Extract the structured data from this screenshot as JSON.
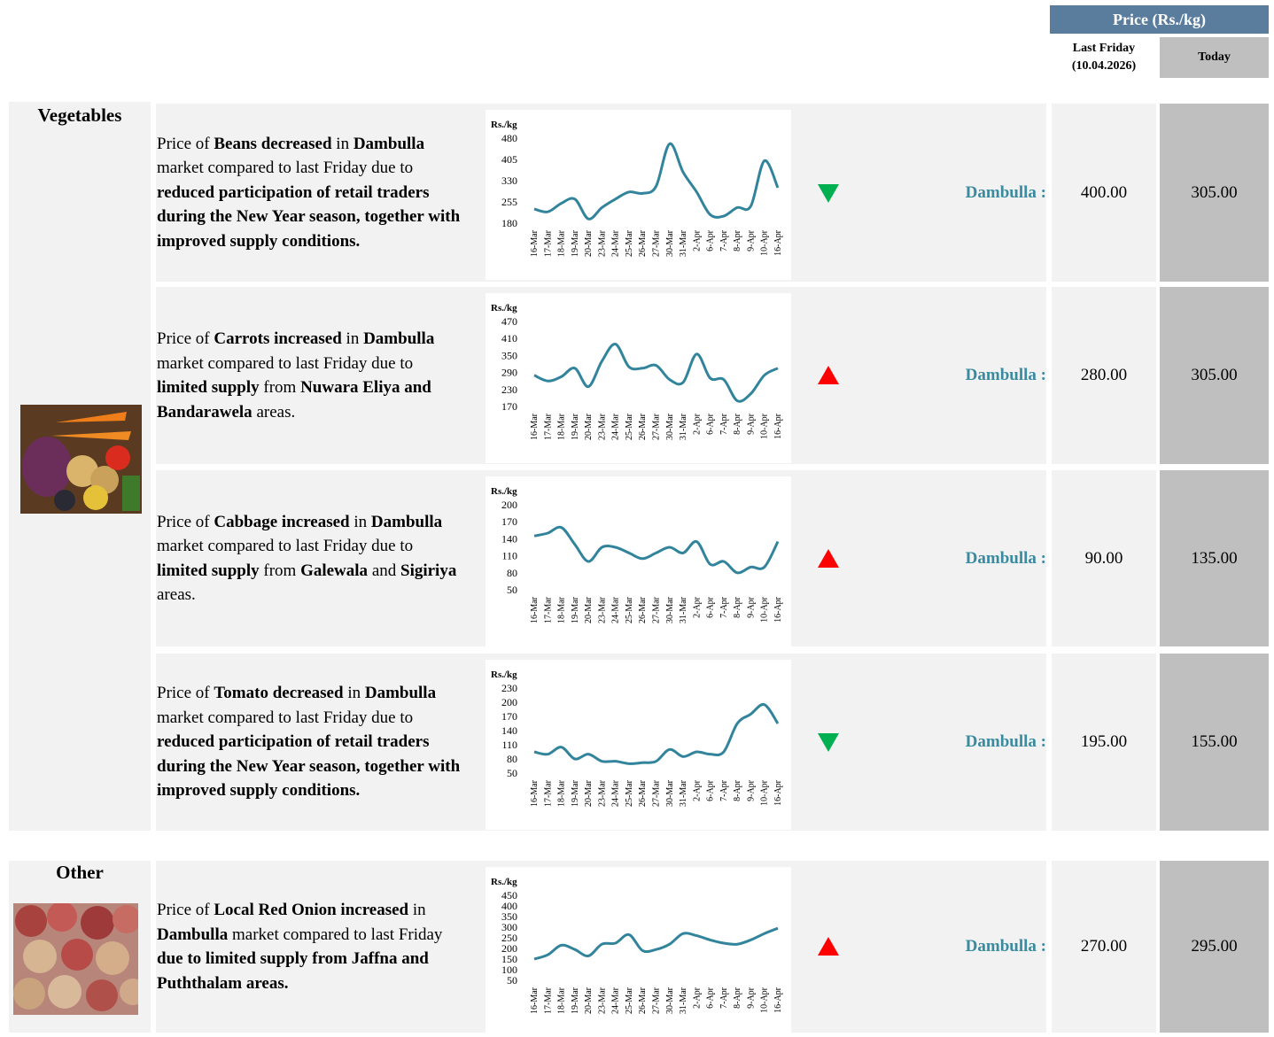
{
  "header": {
    "price_title": "Price (Rs./kg)",
    "last_friday": [
      "Last Friday",
      "(10.04.2026)"
    ],
    "today": "Today"
  },
  "sections": [
    {
      "title": "Vegetables",
      "rows": [
        {
          "description": [
            {
              "text": "Price of ",
              "bold": false
            },
            {
              "text": "Beans decreased",
              "bold": true
            },
            {
              "text": " in ",
              "bold": false
            },
            {
              "text": "Dambulla",
              "bold": true
            },
            {
              "text": " market compared to last Friday due to ",
              "bold": false
            },
            {
              "text": "reduced participation of retail traders during the New Year season, together with improved supply conditions.",
              "bold": true
            }
          ],
          "direction": "down",
          "arrow_color": "#00b050",
          "market": "Dambulla :",
          "last_friday": "400.00",
          "today": "305.00",
          "chart_data": {
            "type": "line",
            "ylabel": "Rs./kg",
            "color": "#31849b",
            "categories": [
              "16-Mar",
              "17-Mar",
              "18-Mar",
              "19-Mar",
              "20-Mar",
              "23-Mar",
              "24-Mar",
              "25-Mar",
              "26-Mar",
              "27-Mar",
              "30-Mar",
              "31-Mar",
              "2-Apr",
              "6-Apr",
              "7-Apr",
              "8-Apr",
              "9-Apr",
              "10-Apr",
              "16-Apr"
            ],
            "values": [
              230,
              220,
              250,
              265,
              195,
              235,
              265,
              290,
              285,
              310,
              460,
              360,
              290,
              210,
              205,
              235,
              240,
              400,
              305
            ],
            "ylim": [
              180,
              480
            ],
            "yticks": [
              180,
              255,
              330,
              405,
              480
            ]
          }
        },
        {
          "description": [
            {
              "text": "Price of ",
              "bold": false
            },
            {
              "text": "Carrots increased",
              "bold": true
            },
            {
              "text": " in ",
              "bold": false
            },
            {
              "text": "Dambulla",
              "bold": true
            },
            {
              "text": " market compared to last Friday due to ",
              "bold": false
            },
            {
              "text": "limited supply",
              "bold": true
            },
            {
              "text": " from ",
              "bold": false
            },
            {
              "text": "Nuwara Eliya and Bandarawela",
              "bold": true
            },
            {
              "text": " areas.",
              "bold": false
            }
          ],
          "direction": "up",
          "arrow_color": "#ff0000",
          "market": "Dambulla :",
          "last_friday": "280.00",
          "today": "305.00",
          "chart_data": {
            "type": "line",
            "ylabel": "Rs./kg",
            "color": "#31849b",
            "categories": [
              "16-Mar",
              "17-Mar",
              "18-Mar",
              "19-Mar",
              "20-Mar",
              "23-Mar",
              "24-Mar",
              "25-Mar",
              "26-Mar",
              "27-Mar",
              "30-Mar",
              "31-Mar",
              "2-Apr",
              "6-Apr",
              "7-Apr",
              "8-Apr",
              "9-Apr",
              "10-Apr",
              "16-Apr"
            ],
            "values": [
              280,
              260,
              275,
              305,
              240,
              330,
              390,
              310,
              305,
              315,
              265,
              255,
              355,
              270,
              265,
              190,
              215,
              280,
              305
            ],
            "ylim": [
              170,
              470
            ],
            "yticks": [
              170,
              230,
              290,
              350,
              410,
              470
            ]
          }
        },
        {
          "description": [
            {
              "text": "Price of ",
              "bold": false
            },
            {
              "text": "Cabbage increased",
              "bold": true
            },
            {
              "text": " in ",
              "bold": false
            },
            {
              "text": "Dambulla",
              "bold": true
            },
            {
              "text": " market compared to last Friday due to ",
              "bold": false
            },
            {
              "text": "limited supply",
              "bold": true
            },
            {
              "text": " from ",
              "bold": false
            },
            {
              "text": "Galewala",
              "bold": true
            },
            {
              "text": " and ",
              "bold": false
            },
            {
              "text": "Sigiriya",
              "bold": true
            },
            {
              "text": " areas.",
              "bold": false
            }
          ],
          "direction": "up",
          "arrow_color": "#ff0000",
          "market": "Dambulla :",
          "last_friday": "90.00",
          "today": "135.00",
          "chart_data": {
            "type": "line",
            "ylabel": "Rs./kg",
            "color": "#31849b",
            "categories": [
              "16-Mar",
              "17-Mar",
              "18-Mar",
              "19-Mar",
              "20-Mar",
              "23-Mar",
              "24-Mar",
              "25-Mar",
              "26-Mar",
              "27-Mar",
              "30-Mar",
              "31-Mar",
              "2-Apr",
              "6-Apr",
              "7-Apr",
              "8-Apr",
              "9-Apr",
              "10-Apr",
              "16-Apr"
            ],
            "values": [
              145,
              150,
              160,
              130,
              100,
              125,
              125,
              115,
              105,
              115,
              125,
              115,
              135,
              95,
              100,
              80,
              90,
              90,
              135
            ],
            "ylim": [
              50,
              200
            ],
            "yticks": [
              50,
              80,
              110,
              140,
              170,
              200
            ]
          }
        },
        {
          "description": [
            {
              "text": "Price of ",
              "bold": false
            },
            {
              "text": "Tomato decreased",
              "bold": true
            },
            {
              "text": " in ",
              "bold": false
            },
            {
              "text": "Dambulla",
              "bold": true
            },
            {
              "text": " market compared to last Friday due to ",
              "bold": false
            },
            {
              "text": "reduced participation of retail traders during the New Year season, together with improved supply conditions.",
              "bold": true
            }
          ],
          "direction": "down",
          "arrow_color": "#00b050",
          "market": "Dambulla :",
          "last_friday": "195.00",
          "today": "155.00",
          "chart_data": {
            "type": "line",
            "ylabel": "Rs./kg",
            "color": "#31849b",
            "categories": [
              "16-Mar",
              "17-Mar",
              "18-Mar",
              "19-Mar",
              "20-Mar",
              "23-Mar",
              "24-Mar",
              "25-Mar",
              "26-Mar",
              "27-Mar",
              "30-Mar",
              "31-Mar",
              "2-Apr",
              "6-Apr",
              "7-Apr",
              "8-Apr",
              "9-Apr",
              "10-Apr",
              "16-Apr"
            ],
            "values": [
              95,
              90,
              105,
              80,
              90,
              75,
              75,
              70,
              72,
              75,
              100,
              85,
              95,
              90,
              95,
              155,
              175,
              195,
              155
            ],
            "ylim": [
              50,
              230
            ],
            "yticks": [
              50,
              80,
              110,
              140,
              170,
              200,
              230
            ]
          }
        }
      ]
    },
    {
      "title": "Other",
      "rows": [
        {
          "description": [
            {
              "text": "Price of ",
              "bold": false
            },
            {
              "text": "Local Red Onion increased",
              "bold": true
            },
            {
              "text": " in ",
              "bold": false
            },
            {
              "text": "Dambulla",
              "bold": true
            },
            {
              "text": " market compared to last Friday ",
              "bold": false
            },
            {
              "text": "due to limited supply from Jaffna and Puththalam areas.",
              "bold": true
            }
          ],
          "direction": "up",
          "arrow_color": "#ff0000",
          "market": "Dambulla :",
          "last_friday": "270.00",
          "today": "295.00",
          "chart_data": {
            "type": "line",
            "ylabel": "Rs./kg",
            "color": "#31849b",
            "categories": [
              "16-Mar",
              "17-Mar",
              "18-Mar",
              "19-Mar",
              "20-Mar",
              "23-Mar",
              "24-Mar",
              "25-Mar",
              "26-Mar",
              "27-Mar",
              "30-Mar",
              "31-Mar",
              "2-Apr",
              "6-Apr",
              "7-Apr",
              "8-Apr",
              "9-Apr",
              "10-Apr",
              "16-Apr"
            ],
            "values": [
              150,
              170,
              215,
              195,
              165,
              220,
              225,
              265,
              190,
              195,
              220,
              270,
              260,
              240,
              225,
              220,
              240,
              270,
              295
            ],
            "ylim": [
              50,
              450
            ],
            "yticks": [
              50,
              100,
              150,
              200,
              250,
              300,
              350,
              400,
              450
            ]
          }
        }
      ]
    }
  ]
}
